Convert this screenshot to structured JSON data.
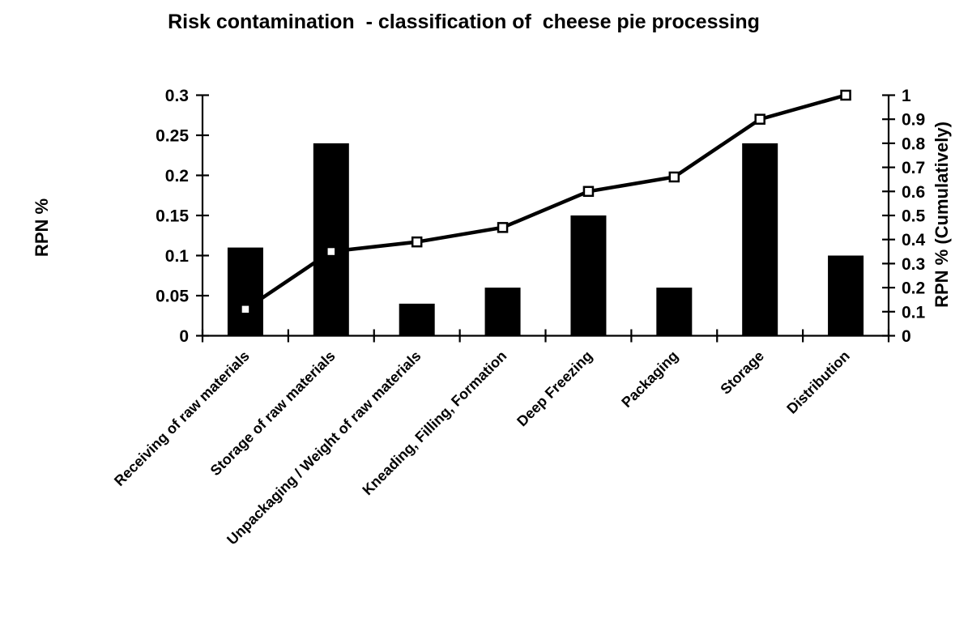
{
  "chart_data": {
    "type": "bar+line (pareto)",
    "title": "Risk contamination  - classification of  cheese pie processing",
    "categories": [
      "Receiving of raw materials",
      "Storage of raw materials",
      "Unpackaging / Weight of raw materials",
      "Kneading, Filling, Formation",
      "Deep Freezing",
      "Packaging",
      "Storage",
      "Distribution"
    ],
    "series": [
      {
        "name": "RPN %",
        "render": "bar",
        "axis": "left",
        "values": [
          0.11,
          0.24,
          0.04,
          0.06,
          0.15,
          0.06,
          0.24,
          0.1
        ]
      },
      {
        "name": "RPN % (Cumulatively)",
        "render": "line",
        "axis": "right",
        "marker": "open-square",
        "values": [
          0.11,
          0.35,
          0.39,
          0.45,
          0.6,
          0.66,
          0.9,
          1.0
        ]
      }
    ],
    "left_axis": {
      "label": "RPN %",
      "min": 0,
      "max": 0.3,
      "step": 0.05,
      "tick_labels": [
        "0",
        "0.05",
        "0.1",
        "0.15",
        "0.2",
        "0.25",
        "0.3"
      ]
    },
    "right_axis": {
      "label": "RPN % (Cumulatively)",
      "min": 0,
      "max": 1,
      "step": 0.1,
      "tick_labels": [
        "0",
        "0.1",
        "0.2",
        "0.3",
        "0.4",
        "0.5",
        "0.6",
        "0.7",
        "0.8",
        "0.9",
        "1"
      ]
    },
    "x_axis": {
      "label_rotation_deg": 45
    },
    "grid": "off",
    "legend": "none",
    "colors": {
      "background": "#ffffff",
      "bar": "#000000",
      "line": "#000000",
      "marker_fill": "#ffffff",
      "marker_stroke": "#000000",
      "axis": "#000000",
      "text": "#000000"
    }
  }
}
